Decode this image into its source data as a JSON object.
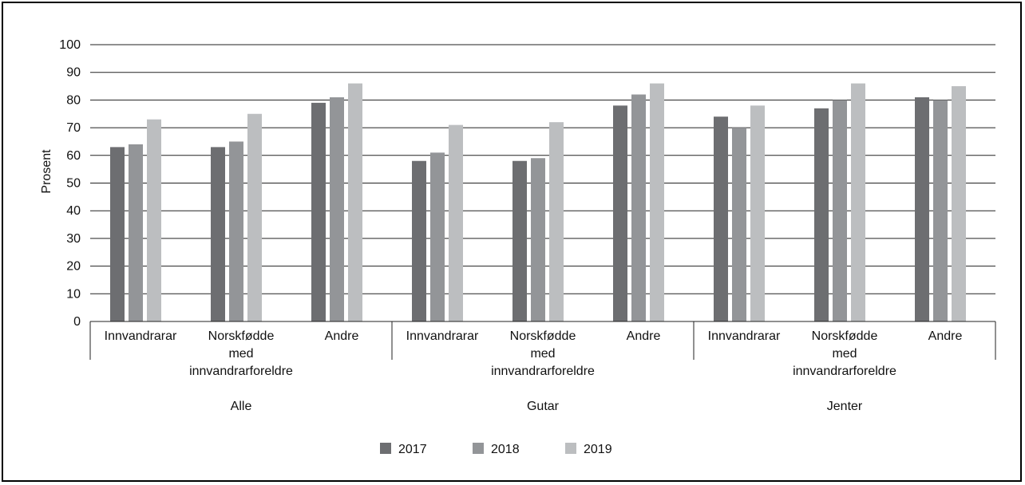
{
  "chart_data": {
    "type": "bar",
    "ylabel": "Prosent",
    "xlabel": "",
    "title": "",
    "ylim": [
      0,
      100
    ],
    "yticks": [
      0,
      10,
      20,
      30,
      40,
      50,
      60,
      70,
      80,
      90,
      100
    ],
    "grid": true,
    "legend_position": "bottom-center",
    "groups": [
      {
        "name": "Alle",
        "categories": [
          [
            "Innvandrarar"
          ],
          [
            "Norskfødde",
            "med",
            "innvandrarforeldre"
          ],
          [
            "Andre"
          ]
        ]
      },
      {
        "name": "Gutar",
        "categories": [
          [
            "Innvandrarar"
          ],
          [
            "Norskfødde",
            "med",
            "innvandrarforeldre"
          ],
          [
            "Andre"
          ]
        ]
      },
      {
        "name": "Jenter",
        "categories": [
          [
            "Innvandrarar"
          ],
          [
            "Norskfødde",
            "med",
            "innvandrarforeldre"
          ],
          [
            "Andre"
          ]
        ]
      }
    ],
    "series": [
      {
        "name": "2017",
        "color": "#6d6e71",
        "values": [
          63,
          63,
          79,
          58,
          58,
          78,
          74,
          77,
          81
        ]
      },
      {
        "name": "2018",
        "color": "#939598",
        "values": [
          64,
          65,
          81,
          61,
          59,
          82,
          70,
          80,
          80
        ]
      },
      {
        "name": "2019",
        "color": "#bcbec0",
        "values": [
          73,
          75,
          86,
          71,
          72,
          86,
          78,
          86,
          85
        ]
      }
    ]
  }
}
